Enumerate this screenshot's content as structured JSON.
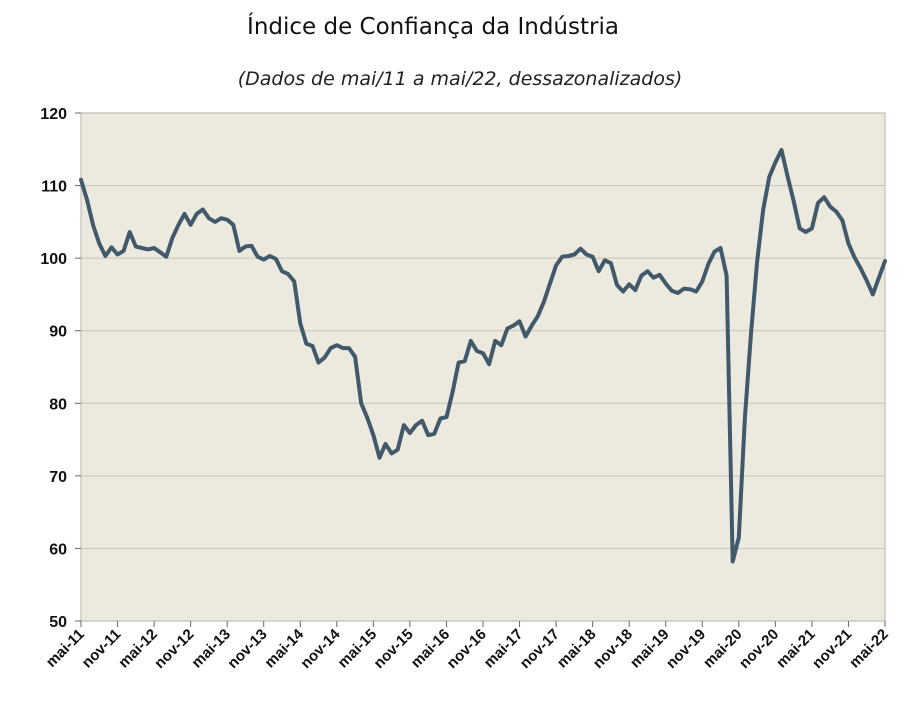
{
  "chart_data": {
    "type": "line",
    "title": "Índice de Confiança da Indústria",
    "subtitle": "(Dados de mai/11 a mai/22, dessazonalizados)",
    "xlabel": "",
    "ylabel": "",
    "ylim": [
      50,
      120
    ],
    "yticks": [
      50,
      60,
      70,
      80,
      90,
      100,
      110,
      120
    ],
    "xtick_labels": [
      "mai-11",
      "nov-11",
      "mai-12",
      "nov-12",
      "mai-13",
      "nov-13",
      "mai-14",
      "nov-14",
      "mai-15",
      "nov-15",
      "mai-16",
      "nov-16",
      "mai-17",
      "nov-17",
      "mai-18",
      "nov-18",
      "mai-19",
      "nov-19",
      "mai-20",
      "nov-20",
      "mai-21",
      "nov-21",
      "mai-22"
    ],
    "grid": true,
    "colors": {
      "line": "#41596a",
      "plot_bg": "#eceade",
      "grid": "#c8c6bb"
    },
    "series": [
      {
        "values": [
          110.8,
          108.0,
          104.5,
          102.0,
          100.3,
          101.5,
          100.5,
          101.0,
          103.6,
          101.6,
          101.4,
          101.2,
          101.4,
          100.8,
          100.2,
          102.8,
          104.6,
          106.1,
          104.6,
          106.1,
          106.7,
          105.5,
          105.0,
          105.5,
          105.3,
          104.6,
          101.0,
          101.6,
          101.7,
          100.2,
          99.8,
          100.3,
          99.9,
          98.2,
          97.8,
          96.8,
          91.0,
          88.2,
          87.9,
          85.6,
          86.3,
          87.6,
          88.0,
          87.6,
          87.6,
          86.4,
          80.0,
          78.0,
          75.6,
          72.5,
          74.4,
          73.1,
          73.6,
          77.0,
          75.9,
          77.0,
          77.6,
          75.6,
          75.8,
          77.9,
          78.1,
          81.5,
          85.6,
          85.8,
          88.6,
          87.2,
          86.9,
          85.4,
          88.6,
          88.0,
          90.3,
          90.7,
          91.3,
          89.2,
          90.7,
          92.0,
          94.0,
          96.5,
          99.0,
          100.2,
          100.3,
          100.5,
          101.3,
          100.5,
          100.2,
          98.2,
          99.7,
          99.3,
          96.3,
          95.4,
          96.4,
          95.6,
          97.6,
          98.2,
          97.3,
          97.7,
          96.5,
          95.5,
          95.2,
          95.8,
          95.7,
          95.4,
          96.8,
          99.2,
          100.9,
          101.4,
          97.6,
          58.2,
          61.5,
          78.0,
          89.6,
          99.5,
          106.7,
          111.2,
          113.2,
          114.9,
          111.3,
          107.9,
          104.1,
          103.6,
          104.1,
          107.6,
          108.4,
          107.1,
          106.4,
          105.2,
          102.0,
          100.1,
          98.6,
          96.9,
          95.0,
          97.3,
          99.6
        ]
      }
    ]
  }
}
